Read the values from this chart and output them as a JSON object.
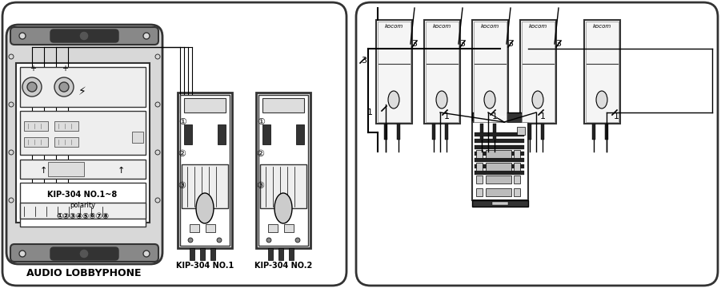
{
  "bg_color": "#f0f0f0",
  "panel_bg": "#d8d8d8",
  "white": "#ffffff",
  "black": "#000000",
  "dark_gray": "#333333",
  "medium_gray": "#888888",
  "light_gray": "#cccccc",
  "title_left": "AUDIO LOBBYPHONE",
  "label_no1": "KIP-304 NO.1",
  "label_no2": "KIP-304 NO.2",
  "inner_text1": "KIP-304 NO.1~8",
  "inner_text2": "polarity",
  "inner_nums": "①②③④⑤⑥⑦⑧",
  "kocom_units": 5,
  "wire_labels_1": [
    1,
    1,
    1,
    1,
    1
  ],
  "wire_labels_3": [
    3,
    3,
    3,
    3
  ],
  "left_label_3": "3",
  "left_label_1": "1",
  "right_label_1": "1"
}
